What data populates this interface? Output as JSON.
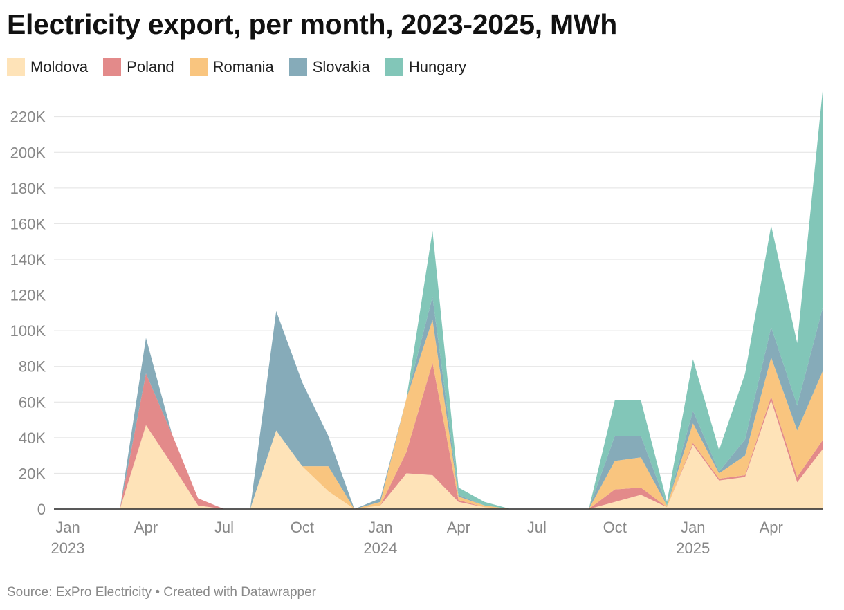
{
  "title": "Electricity export, per month, 2023-2025, MWh",
  "footer": "Source: ExPro Electricity • Created with Datawrapper",
  "legend": [
    {
      "name": "Moldova",
      "color": "#fee3b8"
    },
    {
      "name": "Poland",
      "color": "#e38a8a"
    },
    {
      "name": "Romania",
      "color": "#f9c57f"
    },
    {
      "name": "Slovakia",
      "color": "#86abb9"
    },
    {
      "name": "Hungary",
      "color": "#82c6b8"
    }
  ],
  "chart_data": {
    "type": "area",
    "stacked": true,
    "x": [
      "2023-01",
      "2023-02",
      "2023-03",
      "2023-04",
      "2023-05",
      "2023-06",
      "2023-07",
      "2023-08",
      "2023-09",
      "2023-10",
      "2023-11",
      "2023-12",
      "2024-01",
      "2024-02",
      "2024-03",
      "2024-04",
      "2024-05",
      "2024-06",
      "2024-07",
      "2024-08",
      "2024-09",
      "2024-10",
      "2024-11",
      "2024-12",
      "2025-01",
      "2025-02",
      "2025-03",
      "2025-04",
      "2025-05",
      "2025-06"
    ],
    "x_tick_labels": [
      {
        "month": "Jan",
        "year": "2023"
      },
      {
        "month": "Apr",
        "year": ""
      },
      {
        "month": "Jul",
        "year": ""
      },
      {
        "month": "Oct",
        "year": ""
      },
      {
        "month": "Jan",
        "year": "2024"
      },
      {
        "month": "Apr",
        "year": ""
      },
      {
        "month": "Jul",
        "year": ""
      },
      {
        "month": "Oct",
        "year": ""
      },
      {
        "month": "Jan",
        "year": "2025"
      },
      {
        "month": "Apr",
        "year": ""
      }
    ],
    "ylim": [
      0,
      235000
    ],
    "y_ticks": [
      0,
      20000,
      40000,
      60000,
      80000,
      100000,
      120000,
      140000,
      160000,
      180000,
      200000,
      220000
    ],
    "y_tick_labels": [
      "0",
      "20K",
      "40K",
      "60K",
      "80K",
      "100K",
      "120K",
      "140K",
      "160K",
      "180K",
      "200K",
      "220K"
    ],
    "grid": true,
    "legend_position": "top-left",
    "series": [
      {
        "name": "Moldova",
        "color": "#fee3b8",
        "values": [
          0,
          0,
          0,
          47000,
          25000,
          2000,
          0,
          0,
          44000,
          24000,
          10000,
          0,
          2000,
          20000,
          19000,
          4000,
          1000,
          0,
          0,
          0,
          0,
          4000,
          8000,
          1000,
          36000,
          16000,
          18000,
          61000,
          15000,
          34000
        ]
      },
      {
        "name": "Poland",
        "color": "#e38a8a",
        "values": [
          0,
          0,
          0,
          29000,
          17000,
          4000,
          0,
          0,
          0,
          0,
          0,
          0,
          0,
          12000,
          63000,
          1000,
          0,
          0,
          0,
          0,
          0,
          7000,
          4000,
          0,
          1000,
          1000,
          1000,
          2000,
          3000,
          5000
        ]
      },
      {
        "name": "Romania",
        "color": "#f9c57f",
        "values": [
          0,
          0,
          0,
          0,
          0,
          0,
          0,
          0,
          0,
          0,
          14000,
          0,
          2000,
          30000,
          24000,
          2000,
          1000,
          0,
          0,
          0,
          0,
          16000,
          17000,
          1000,
          11000,
          3000,
          11000,
          22000,
          26000,
          39000
        ]
      },
      {
        "name": "Slovakia",
        "color": "#86abb9",
        "values": [
          0,
          0,
          0,
          20000,
          0,
          0,
          0,
          0,
          67000,
          47000,
          17000,
          0,
          2000,
          0,
          13000,
          1000,
          0,
          0,
          0,
          0,
          0,
          14000,
          12000,
          0,
          7000,
          1000,
          9000,
          17000,
          14000,
          36000
        ]
      },
      {
        "name": "Hungary",
        "color": "#82c6b8",
        "values": [
          0,
          0,
          0,
          0,
          0,
          0,
          0,
          0,
          0,
          0,
          0,
          0,
          0,
          0,
          37000,
          4000,
          2000,
          0,
          0,
          0,
          0,
          20000,
          20000,
          2000,
          29000,
          12000,
          37000,
          57000,
          35000,
          124000
        ]
      }
    ]
  }
}
